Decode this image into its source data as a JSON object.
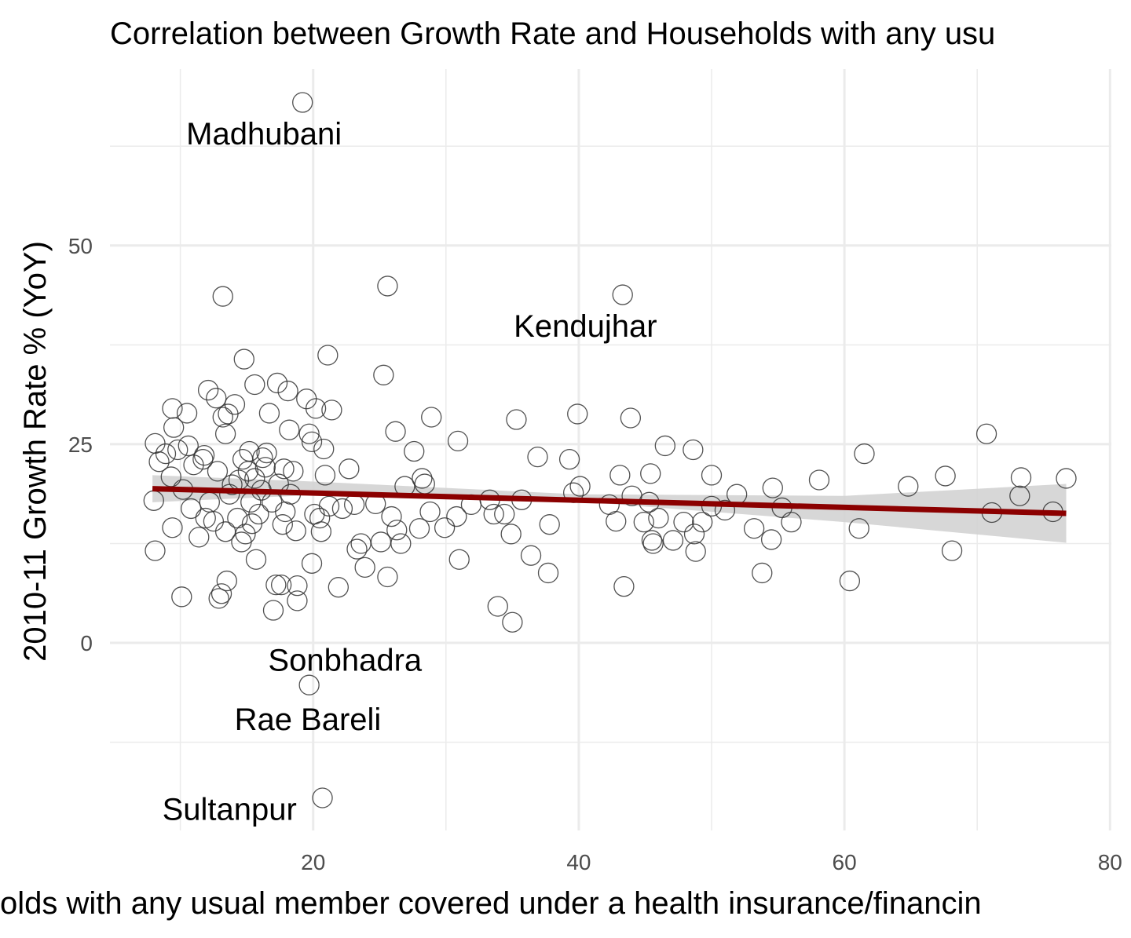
{
  "chart_data": {
    "type": "scatter",
    "title": "Correlation between Growth Rate and Households with any usu",
    "x_label": "olds with any usual member covered under a health insurance/financin",
    "y_label": "2010-11 Growth Rate % (YoY)",
    "xlim": [
      4.7,
      80.1
    ],
    "ylim": [
      -23.6,
      72.2
    ],
    "xticks": [
      20,
      40,
      60,
      80
    ],
    "yticks": [
      0,
      25,
      50
    ],
    "minor_xticks": [
      10,
      30,
      50,
      70
    ],
    "minor_yticks": [
      -12.5,
      12.5,
      37.5,
      62.5
    ],
    "grid": true,
    "color": "#333333",
    "x": [
      8.0,
      8.1,
      8.1,
      8.4,
      8.9,
      9.4,
      9.4,
      9.5,
      9.3,
      9.8,
      10.1,
      10.2,
      10.5,
      10.6,
      10.8,
      11.0,
      11.4,
      11.7,
      11.8,
      11.9,
      12.1,
      12.2,
      12.5,
      12.7,
      12.8,
      12.9,
      13.1,
      13.2,
      13.2,
      13.4,
      13.4,
      13.5,
      13.6,
      13.7,
      13.9,
      14.1,
      14.3,
      14.4,
      14.6,
      14.7,
      14.8,
      14.9,
      15.1,
      15.2,
      15.3,
      15.4,
      15.6,
      15.6,
      15.7,
      15.9,
      16.1,
      16.2,
      16.4,
      16.5,
      16.7,
      16.9,
      17.0,
      17.2,
      17.3,
      17.4,
      17.6,
      17.7,
      17.8,
      17.9,
      18.1,
      18.2,
      18.3,
      18.5,
      18.7,
      18.8,
      18.8,
      19.2,
      19.5,
      19.7,
      19.7,
      19.9,
      19.9,
      20.1,
      20.2,
      20.5,
      20.6,
      20.7,
      20.8,
      20.9,
      21.1,
      21.2,
      21.4,
      21.9,
      22.2,
      22.7,
      23.1,
      23.3,
      23.6,
      23.9,
      24.7,
      25.1,
      25.3,
      25.6,
      25.6,
      25.9,
      26.2,
      26.3,
      26.6,
      26.9,
      27.6,
      28.0,
      28.2,
      28.4,
      28.8,
      28.9,
      29.9,
      30.8,
      30.9,
      31.0,
      31.9,
      33.3,
      33.6,
      33.9,
      34.4,
      34.9,
      35.0,
      35.3,
      35.7,
      36.4,
      36.9,
      37.7,
      37.8,
      39.3,
      39.6,
      39.9,
      40.1,
      42.3,
      42.8,
      43.1,
      43.3,
      43.4,
      43.9,
      44.0,
      44.9,
      45.3,
      45.4,
      45.5,
      45.6,
      46.0,
      46.5,
      47.1,
      47.9,
      48.6,
      48.7,
      48.8,
      49.3,
      50.0,
      50.0,
      51.0,
      51.9,
      53.2,
      53.8,
      54.5,
      54.6,
      55.3,
      56.0,
      58.1,
      60.4,
      61.1,
      61.5,
      64.8,
      67.6,
      68.1,
      70.7,
      71.1,
      73.2,
      73.3,
      75.7,
      76.7
    ],
    "values": [
      17.9,
      11.6,
      25.1,
      22.8,
      23.8,
      14.5,
      29.5,
      27.1,
      20.9,
      24.3,
      5.8,
      19.3,
      28.9,
      24.8,
      16.9,
      22.4,
      13.3,
      23.1,
      23.6,
      15.7,
      31.8,
      17.7,
      15.3,
      30.8,
      21.6,
      5.6,
      6.2,
      43.6,
      28.4,
      26.3,
      14.0,
      7.8,
      28.8,
      18.7,
      19.9,
      30.0,
      15.7,
      20.5,
      12.7,
      23.1,
      35.7,
      13.7,
      21.6,
      24.1,
      17.7,
      15.0,
      32.5,
      20.7,
      10.5,
      16.2,
      19.2,
      23.3,
      22.1,
      23.9,
      28.9,
      17.7,
      4.1,
      7.3,
      32.7,
      20.0,
      7.3,
      14.9,
      21.9,
      16.5,
      31.7,
      26.8,
      18.7,
      21.6,
      14.1,
      7.2,
      5.3,
      68.0,
      30.7,
      -5.3,
      26.3,
      25.3,
      10.0,
      16.2,
      29.5,
      15.7,
      14.0,
      -19.5,
      24.4,
      21.1,
      36.2,
      17.2,
      29.3,
      7.0,
      16.9,
      21.9,
      17.4,
      11.8,
      12.5,
      9.5,
      17.5,
      12.7,
      33.7,
      8.3,
      44.9,
      15.9,
      26.6,
      14.2,
      12.5,
      19.7,
      24.1,
      14.4,
      20.7,
      20.0,
      16.5,
      28.4,
      14.5,
      15.9,
      25.4,
      10.5,
      17.4,
      18.0,
      16.2,
      4.6,
      16.2,
      13.7,
      2.6,
      28.1,
      18.0,
      11.0,
      23.4,
      8.8,
      14.9,
      23.1,
      18.9,
      28.8,
      19.7,
      17.4,
      15.3,
      21.1,
      43.8,
      7.1,
      28.3,
      18.5,
      15.2,
      17.7,
      21.3,
      12.9,
      12.5,
      15.7,
      24.8,
      12.9,
      15.2,
      24.3,
      13.7,
      11.5,
      15.2,
      21.1,
      17.2,
      16.7,
      18.7,
      14.4,
      8.8,
      13.0,
      19.5,
      17.0,
      15.2,
      20.5,
      7.8,
      14.4,
      23.8,
      19.7,
      21.0,
      11.6,
      26.3,
      16.4,
      18.5,
      20.8,
      16.5,
      20.7
    ],
    "fit": {
      "x": [
        7.9,
        76.7
      ],
      "values": [
        19.4,
        16.3
      ],
      "color": "#8b0000"
    },
    "band": {
      "x": [
        7.9,
        20,
        40,
        60,
        76.7
      ],
      "lower": [
        17.7,
        18.6,
        17.8,
        15.2,
        12.6
      ],
      "upper": [
        21.1,
        20.3,
        18.7,
        18.5,
        20.0
      ],
      "color": "#d3d3d3"
    },
    "annotations": [
      {
        "text": "Madhubani",
        "x": 16.3,
        "y": 64.1
      },
      {
        "text": "Kendujhar",
        "x": 40.5,
        "y": 39.9
      },
      {
        "text": "Sonbhadra",
        "x": 22.4,
        "y": -2.1
      },
      {
        "text": "Rae Bareli",
        "x": 19.6,
        "y": -9.6
      },
      {
        "text": "Sultanpur",
        "x": 13.7,
        "y": -20.9
      }
    ]
  }
}
